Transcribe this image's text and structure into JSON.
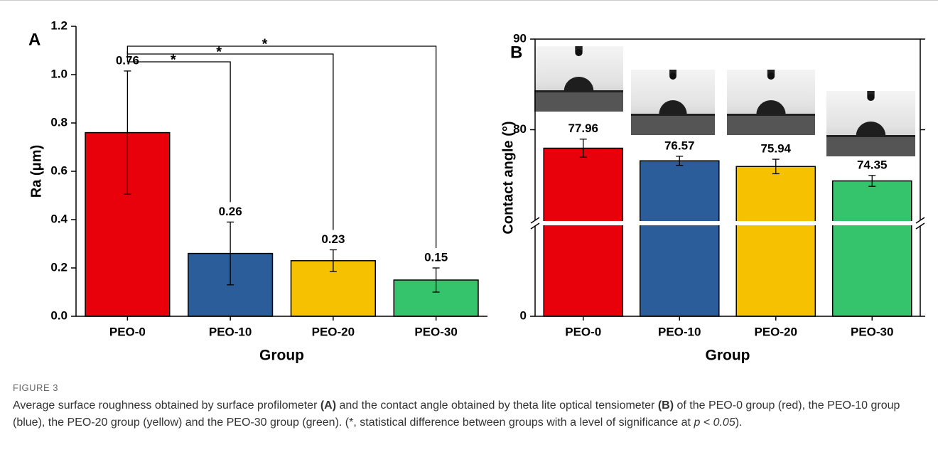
{
  "chart_data": [
    {
      "type": "bar",
      "panel_label": "A",
      "y_label": "Ra (μm)",
      "x_label": "Group",
      "categories": [
        "PEO-0",
        "PEO-10",
        "PEO-20",
        "PEO-30"
      ],
      "values": [
        0.76,
        0.26,
        0.23,
        0.15
      ],
      "errors": [
        0.255,
        0.13,
        0.045,
        0.05
      ],
      "colors": [
        "#e8000b",
        "#2a5d9a",
        "#f6c200",
        "#35c46c"
      ],
      "ylim": [
        0,
        1.2
      ],
      "yticks": [
        {
          "value": 0,
          "label": "0.0"
        },
        0.2,
        0.4,
        0.6,
        0.8,
        {
          "value": 1,
          "label": "1.0"
        },
        1.2
      ],
      "significance": [
        {
          "from": 0,
          "to": 1,
          "label": "*"
        },
        {
          "from": 0,
          "to": 2,
          "label": "*"
        },
        {
          "from": 0,
          "to": 3,
          "label": "*"
        }
      ]
    },
    {
      "type": "bar",
      "panel_label": "B",
      "y_label": "Contact angle (°)",
      "x_label": "Group",
      "categories": [
        "PEO-0",
        "PEO-10",
        "PEO-20",
        "PEO-30"
      ],
      "values": [
        77.96,
        76.57,
        75.94,
        74.35
      ],
      "errors": [
        1.0,
        0.5,
        0.8,
        0.6
      ],
      "colors": [
        "#e8000b",
        "#2a5d9a",
        "#f6c200",
        "#35c46c"
      ],
      "ylim": [
        0,
        90
      ],
      "axis_break": [
        10,
        70
      ],
      "yticks": [
        0,
        80,
        90
      ]
    }
  ],
  "caption": {
    "label": "FIGURE 3",
    "parts": [
      "Average surface roughness obtained by surface profilometer ",
      "(A)",
      " and the contact angle obtained by theta lite optical tensiometer ",
      "(B)",
      " of the PEO-0 group (red), the PEO-10 group (blue), the PEO-20 group (yellow) and the PEO-30 group (green). (*, statistical difference between groups with a level of significance at ",
      "p < 0.05",
      ")."
    ]
  }
}
